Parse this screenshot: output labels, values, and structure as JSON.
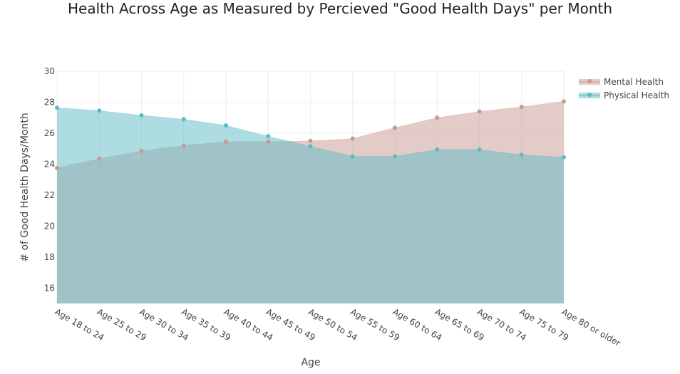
{
  "chart_data": {
    "type": "area",
    "title": "Health Across Age as Measured by Percieved \"Good Health Days\" per Month",
    "xlabel": "Age",
    "ylabel": "# of Good Health Days/Month",
    "categories": [
      "Age 18 to 24",
      "Age 25 to 29",
      "Age 30 to 34",
      "Age 35 to 39",
      "Age 40 to 44",
      "Age 45 to 49",
      "Age 50 to 54",
      "Age 55 to 59",
      "Age 60 to 64",
      "Age 65 to 69",
      "Age 70 to 74",
      "Age 75 to 79",
      "Age 80 or older"
    ],
    "series": [
      {
        "name": "Mental Health",
        "color": "#c79a8f",
        "values": [
          23.75,
          24.35,
          24.85,
          25.2,
          25.45,
          25.45,
          25.5,
          25.65,
          26.35,
          27.0,
          27.4,
          27.7,
          28.05
        ]
      },
      {
        "name": "Physical Health",
        "color": "#5bbac6",
        "values": [
          27.65,
          27.45,
          27.15,
          26.9,
          26.5,
          25.8,
          25.15,
          24.5,
          24.5,
          24.95,
          24.95,
          24.6,
          24.45
        ]
      }
    ],
    "ylim": [
      15,
      30
    ],
    "yticks": [
      16,
      18,
      20,
      22,
      24,
      26,
      28,
      30
    ],
    "grid": true,
    "legend": "top-right"
  }
}
